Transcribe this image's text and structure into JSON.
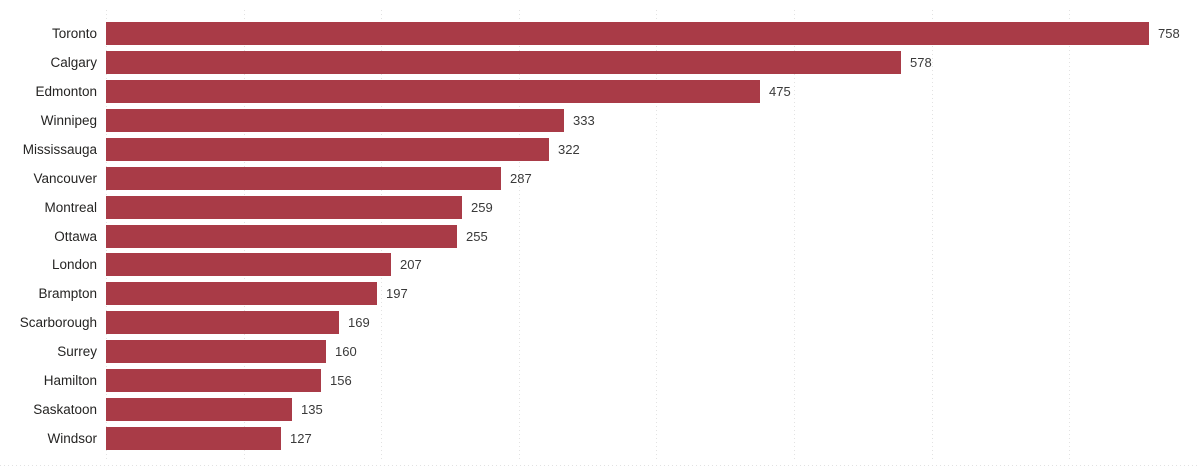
{
  "chart_data": {
    "type": "bar",
    "orientation": "horizontal",
    "title": "",
    "xlabel": "",
    "ylabel": "",
    "categories": [
      "Toronto",
      "Calgary",
      "Edmonton",
      "Winnipeg",
      "Mississauga",
      "Vancouver",
      "Montreal",
      "Ottawa",
      "London",
      "Brampton",
      "Scarborough",
      "Surrey",
      "Hamilton",
      "Saskatoon",
      "Windsor"
    ],
    "values": [
      758,
      578,
      475,
      333,
      322,
      287,
      259,
      255,
      207,
      197,
      169,
      160,
      156,
      135,
      127
    ],
    "data_labels": true,
    "xlim": [
      0,
      795
    ],
    "gridline_interval": 100,
    "grid": "vertical-dotted",
    "legend": "none",
    "colors": {
      "bar": "#a93b47",
      "gridline": "#e2e2e2",
      "category_label": "#252423",
      "value_label": "#3a3a3a",
      "background": "#ffffff"
    }
  }
}
